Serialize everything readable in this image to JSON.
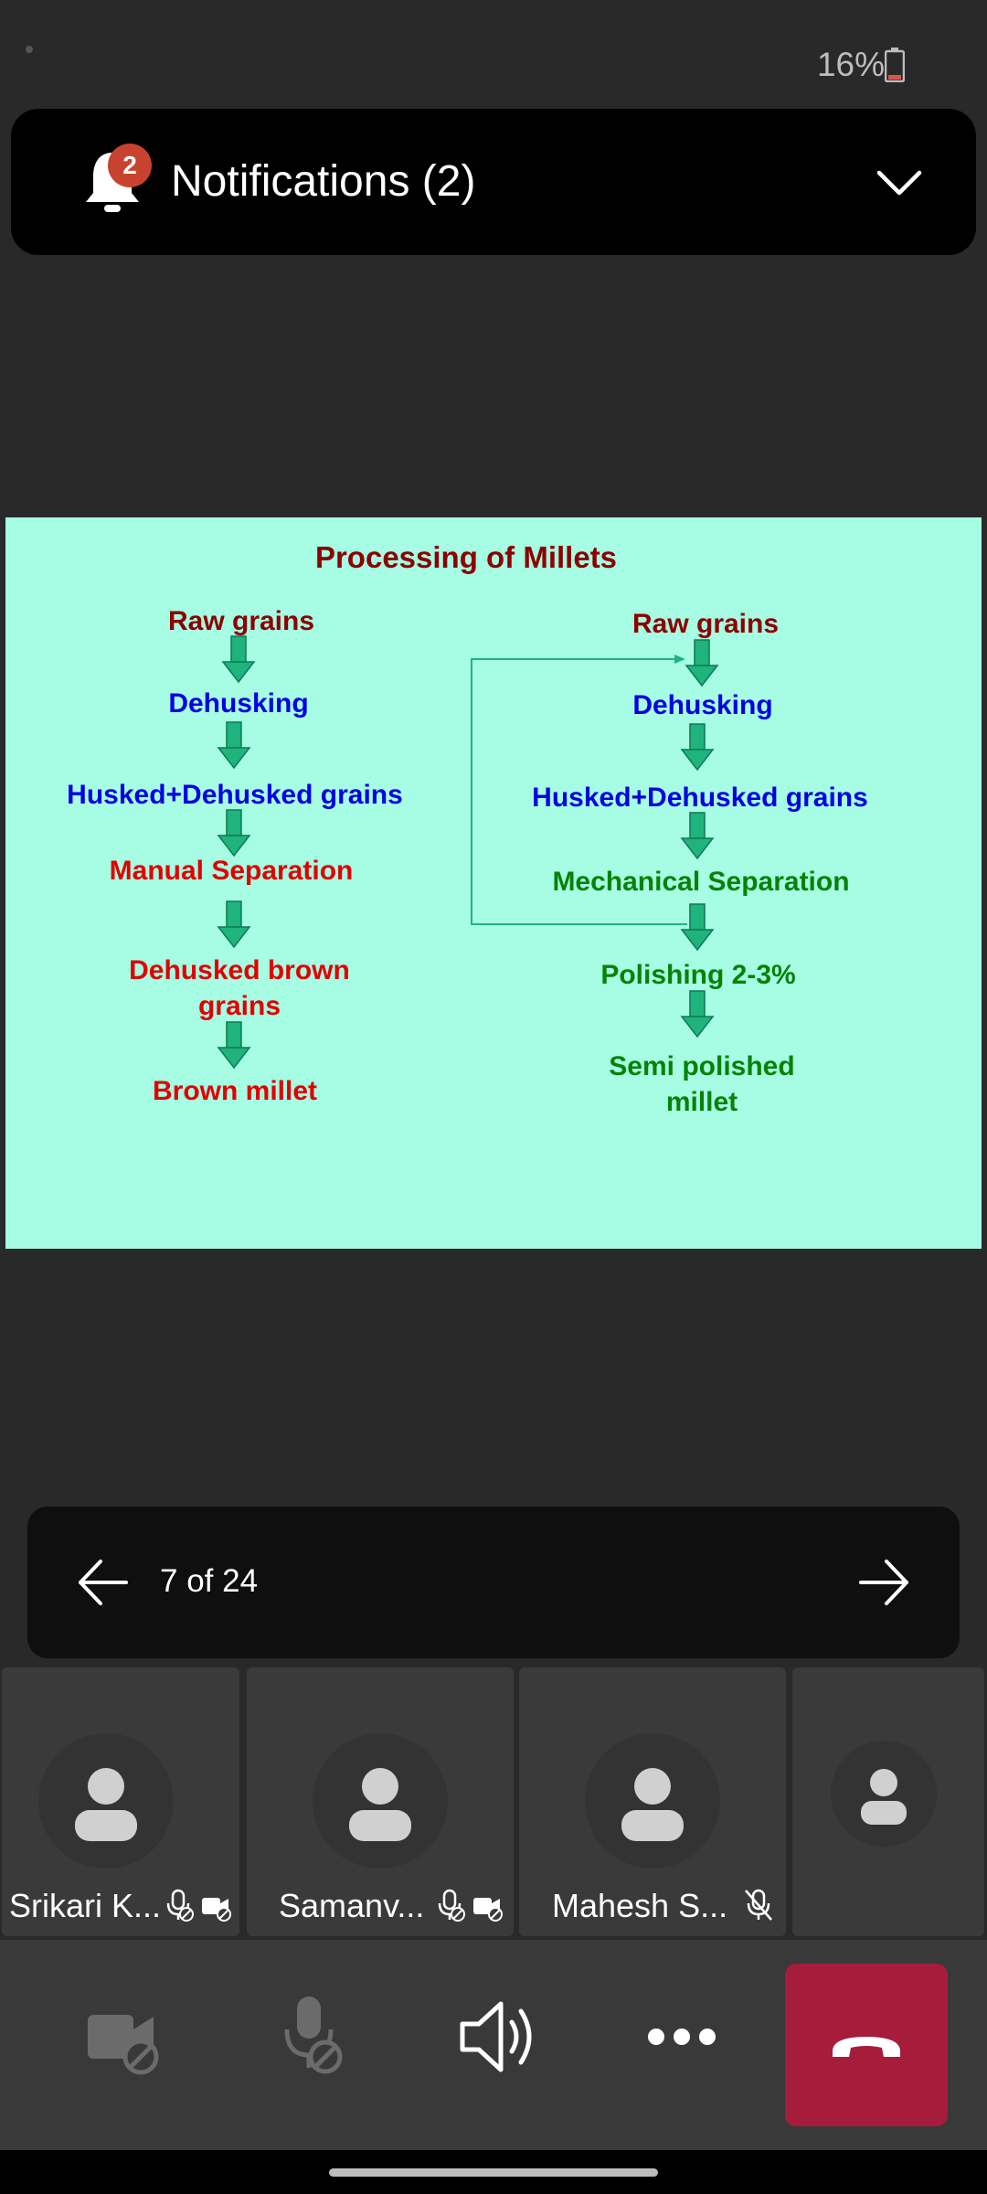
{
  "status_bar": {
    "battery": "16%"
  },
  "notifications": {
    "title": "Notifications (2)",
    "badge": "2"
  },
  "slide": {
    "title": "Processing of Millets",
    "left_flow": [
      "Raw grains",
      "Dehusking",
      "Husked+Dehusked grains",
      "Manual Separation",
      "Dehusked brown",
      "grains",
      "Brown millet"
    ],
    "right_flow": [
      "Raw grains",
      "Dehusking",
      "Husked+Dehusked grains",
      "Mechanical Separation",
      "Polishing 2-3%",
      "Semi polished",
      "millet"
    ],
    "colors": {
      "background": "#a6fde3",
      "dark_red": "#8b0000",
      "blue": "#0000e0",
      "red": "#e00000",
      "green": "#078207",
      "arrow": "#1fb37d"
    }
  },
  "pager": {
    "label": "7 of 24"
  },
  "participants": [
    {
      "name": "Srikari K...",
      "icons": [
        "mic-off-icon",
        "camera-off-icon"
      ]
    },
    {
      "name": "Samanv...",
      "icons": [
        "mic-off-icon",
        "camera-off-icon"
      ]
    },
    {
      "name": "Mahesh S...",
      "icons": [
        "muted-icon"
      ]
    },
    {
      "name": "",
      "icons": []
    }
  ],
  "controls": {
    "items": [
      "camera-toggle",
      "mic-toggle",
      "speaker",
      "more-options",
      "hang-up"
    ],
    "hangup_color": "#a51d3b"
  }
}
